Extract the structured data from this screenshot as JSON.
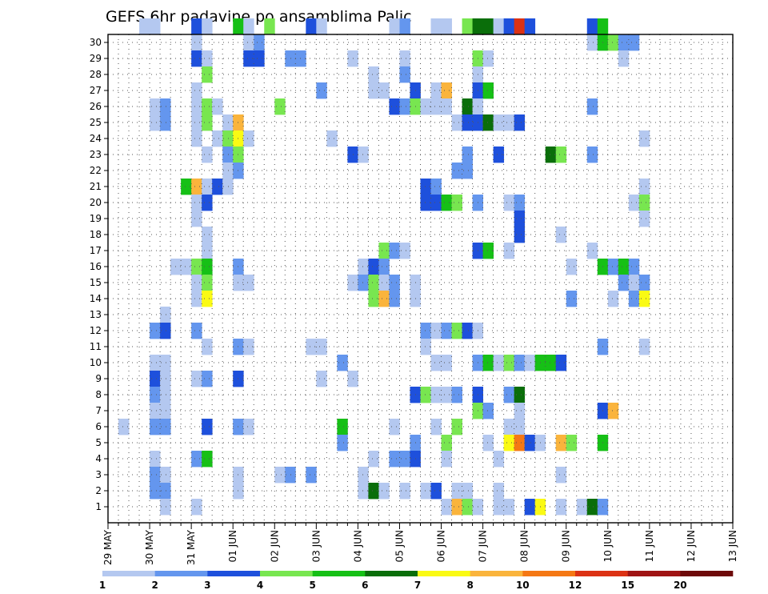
{
  "chart_data": {
    "type": "heatmap",
    "title": "GEFS 6hr padavine po ansamblima Palic",
    "y_categories": [
      "1",
      "2",
      "3",
      "4",
      "5",
      "6",
      "7",
      "8",
      "9",
      "10",
      "11",
      "12",
      "13",
      "14",
      "15",
      "16",
      "17",
      "18",
      "19",
      "20",
      "21",
      "22",
      "23",
      "24",
      "25",
      "26",
      "27",
      "28",
      "29",
      "30"
    ],
    "x_tick_labels": [
      "29 MAY",
      "30 MAY",
      "31 MAY",
      "01 JUN",
      "02 JUN",
      "03 JUN",
      "04 JUN",
      "05 JUN",
      "06 JUN",
      "07 JUN",
      "08 JUN",
      "09 JUN",
      "10 JUN",
      "11 JUN",
      "12 JUN",
      "13 JUN"
    ],
    "steps_per_day": 4,
    "grid": true,
    "legend": {
      "placement": "bottom",
      "bounds": [
        "1",
        "2",
        "3",
        "4",
        "5",
        "6",
        "7",
        "8",
        "10",
        "12",
        "15",
        "20"
      ],
      "colors": [
        "#b4c8f0",
        "#6496ee",
        "#1e50dc",
        "#78e650",
        "#16c016",
        "#0a6e0a",
        "#fafa14",
        "#fab43c",
        "#f57814",
        "#dc3214",
        "#a01414",
        "#6e0a0a"
      ]
    },
    "cells": [
      [
        30,
        3,
        0
      ],
      [
        30,
        4,
        0
      ],
      [
        30,
        8,
        2
      ],
      [
        30,
        9,
        0
      ],
      [
        30,
        12,
        4
      ],
      [
        30,
        13,
        0
      ],
      [
        30,
        15,
        3
      ],
      [
        30,
        19,
        2
      ],
      [
        30,
        20,
        0
      ],
      [
        30,
        27,
        0
      ],
      [
        30,
        28,
        1
      ],
      [
        30,
        31,
        0
      ],
      [
        30,
        32,
        0
      ],
      [
        30,
        34,
        3
      ],
      [
        30,
        35,
        5
      ],
      [
        30,
        36,
        5
      ],
      [
        30,
        37,
        0
      ],
      [
        30,
        38,
        2
      ],
      [
        30,
        39,
        9
      ],
      [
        30,
        40,
        2
      ],
      [
        30,
        46,
        2
      ],
      [
        30,
        47,
        4
      ],
      [
        29,
        8,
        0
      ],
      [
        29,
        13,
        0
      ],
      [
        29,
        14,
        1
      ],
      [
        29,
        46,
        0
      ],
      [
        29,
        47,
        4
      ],
      [
        29,
        48,
        3
      ],
      [
        29,
        49,
        1
      ],
      [
        29,
        50,
        1
      ],
      [
        28,
        8,
        2
      ],
      [
        28,
        9,
        0
      ],
      [
        28,
        13,
        2
      ],
      [
        28,
        14,
        2
      ],
      [
        28,
        17,
        1
      ],
      [
        28,
        18,
        1
      ],
      [
        28,
        23,
        0
      ],
      [
        28,
        28,
        0
      ],
      [
        28,
        35,
        3
      ],
      [
        28,
        36,
        0
      ],
      [
        28,
        49,
        0
      ],
      [
        27,
        9,
        3
      ],
      [
        27,
        25,
        0
      ],
      [
        27,
        28,
        1
      ],
      [
        27,
        35,
        0
      ],
      [
        26,
        8,
        0
      ],
      [
        26,
        20,
        1
      ],
      [
        26,
        25,
        0
      ],
      [
        26,
        26,
        0
      ],
      [
        26,
        29,
        2
      ],
      [
        26,
        31,
        0
      ],
      [
        26,
        32,
        7
      ],
      [
        26,
        35,
        2
      ],
      [
        26,
        36,
        4
      ],
      [
        25,
        4,
        0
      ],
      [
        25,
        5,
        1
      ],
      [
        25,
        8,
        0
      ],
      [
        25,
        9,
        3
      ],
      [
        25,
        10,
        0
      ],
      [
        25,
        16,
        3
      ],
      [
        25,
        27,
        2
      ],
      [
        25,
        28,
        1
      ],
      [
        25,
        29,
        3
      ],
      [
        25,
        30,
        0
      ],
      [
        25,
        31,
        0
      ],
      [
        25,
        32,
        0
      ],
      [
        25,
        34,
        5
      ],
      [
        25,
        35,
        0
      ],
      [
        25,
        46,
        1
      ],
      [
        24,
        4,
        0
      ],
      [
        24,
        5,
        1
      ],
      [
        24,
        8,
        0
      ],
      [
        24,
        9,
        3
      ],
      [
        24,
        11,
        0
      ],
      [
        24,
        12,
        7
      ],
      [
        24,
        33,
        0
      ],
      [
        24,
        34,
        2
      ],
      [
        24,
        35,
        2
      ],
      [
        24,
        36,
        5
      ],
      [
        24,
        37,
        0
      ],
      [
        24,
        38,
        0
      ],
      [
        24,
        39,
        2
      ],
      [
        23,
        8,
        0
      ],
      [
        23,
        10,
        0
      ],
      [
        23,
        11,
        3
      ],
      [
        23,
        12,
        6
      ],
      [
        23,
        13,
        0
      ],
      [
        23,
        21,
        0
      ],
      [
        23,
        51,
        0
      ],
      [
        22,
        9,
        0
      ],
      [
        22,
        11,
        1
      ],
      [
        22,
        12,
        3
      ],
      [
        22,
        23,
        2
      ],
      [
        22,
        24,
        0
      ],
      [
        22,
        34,
        1
      ],
      [
        22,
        37,
        2
      ],
      [
        22,
        42,
        5
      ],
      [
        22,
        43,
        3
      ],
      [
        22,
        46,
        1
      ],
      [
        21,
        11,
        0
      ],
      [
        21,
        12,
        1
      ],
      [
        21,
        33,
        1
      ],
      [
        21,
        34,
        1
      ],
      [
        20,
        7,
        4
      ],
      [
        20,
        8,
        7
      ],
      [
        20,
        9,
        0
      ],
      [
        20,
        10,
        2
      ],
      [
        20,
        11,
        0
      ],
      [
        20,
        30,
        2
      ],
      [
        20,
        31,
        1
      ],
      [
        20,
        51,
        0
      ],
      [
        19,
        8,
        0
      ],
      [
        19,
        9,
        2
      ],
      [
        19,
        30,
        2
      ],
      [
        19,
        31,
        2
      ],
      [
        19,
        32,
        4
      ],
      [
        19,
        33,
        3
      ],
      [
        19,
        35,
        1
      ],
      [
        19,
        38,
        0
      ],
      [
        19,
        39,
        1
      ],
      [
        19,
        50,
        0
      ],
      [
        19,
        51,
        3
      ],
      [
        18,
        8,
        0
      ],
      [
        18,
        39,
        2
      ],
      [
        18,
        51,
        0
      ],
      [
        17,
        9,
        0
      ],
      [
        17,
        39,
        2
      ],
      [
        17,
        43,
        0
      ],
      [
        16,
        9,
        0
      ],
      [
        16,
        26,
        3
      ],
      [
        16,
        27,
        1
      ],
      [
        16,
        28,
        0
      ],
      [
        16,
        35,
        2
      ],
      [
        16,
        36,
        4
      ],
      [
        16,
        38,
        0
      ],
      [
        16,
        46,
        0
      ],
      [
        15,
        6,
        0
      ],
      [
        15,
        7,
        0
      ],
      [
        15,
        8,
        3
      ],
      [
        15,
        9,
        4
      ],
      [
        15,
        12,
        1
      ],
      [
        15,
        24,
        0
      ],
      [
        15,
        25,
        2
      ],
      [
        15,
        26,
        1
      ],
      [
        15,
        44,
        0
      ],
      [
        15,
        47,
        4
      ],
      [
        15,
        48,
        1
      ],
      [
        15,
        49,
        4
      ],
      [
        15,
        50,
        1
      ],
      [
        14,
        8,
        0
      ],
      [
        14,
        9,
        3
      ],
      [
        14,
        12,
        0
      ],
      [
        14,
        13,
        0
      ],
      [
        14,
        23,
        0
      ],
      [
        14,
        24,
        1
      ],
      [
        14,
        25,
        3
      ],
      [
        14,
        26,
        0
      ],
      [
        14,
        27,
        1
      ],
      [
        14,
        29,
        0
      ],
      [
        14,
        49,
        1
      ],
      [
        14,
        50,
        0
      ],
      [
        14,
        51,
        1
      ],
      [
        13,
        8,
        0
      ],
      [
        13,
        9,
        6
      ],
      [
        13,
        25,
        3
      ],
      [
        13,
        26,
        7
      ],
      [
        13,
        27,
        1
      ],
      [
        13,
        29,
        0
      ],
      [
        13,
        44,
        1
      ],
      [
        13,
        48,
        0
      ],
      [
        13,
        50,
        1
      ],
      [
        13,
        51,
        6
      ],
      [
        12,
        5,
        0
      ],
      [
        11,
        4,
        1
      ],
      [
        11,
        5,
        2
      ],
      [
        11,
        8,
        1
      ],
      [
        11,
        30,
        1
      ],
      [
        11,
        31,
        0
      ],
      [
        11,
        32,
        1
      ],
      [
        11,
        33,
        3
      ],
      [
        11,
        34,
        2
      ],
      [
        11,
        35,
        0
      ],
      [
        10,
        9,
        0
      ],
      [
        10,
        12,
        1
      ],
      [
        10,
        13,
        0
      ],
      [
        10,
        19,
        0
      ],
      [
        10,
        20,
        0
      ],
      [
        10,
        30,
        0
      ],
      [
        10,
        47,
        1
      ],
      [
        10,
        51,
        0
      ],
      [
        9,
        4,
        0
      ],
      [
        9,
        5,
        0
      ],
      [
        9,
        22,
        1
      ],
      [
        9,
        31,
        0
      ],
      [
        9,
        32,
        0
      ],
      [
        9,
        35,
        1
      ],
      [
        9,
        36,
        4
      ],
      [
        9,
        37,
        0
      ],
      [
        9,
        38,
        3
      ],
      [
        9,
        39,
        1
      ],
      [
        9,
        40,
        0
      ],
      [
        9,
        41,
        4
      ],
      [
        9,
        42,
        4
      ],
      [
        9,
        43,
        2
      ],
      [
        8,
        4,
        2
      ],
      [
        8,
        5,
        0
      ],
      [
        8,
        8,
        0
      ],
      [
        8,
        9,
        1
      ],
      [
        8,
        12,
        2
      ],
      [
        8,
        20,
        0
      ],
      [
        8,
        23,
        0
      ],
      [
        7,
        4,
        1
      ],
      [
        7,
        5,
        0
      ],
      [
        7,
        29,
        2
      ],
      [
        7,
        30,
        3
      ],
      [
        7,
        31,
        0
      ],
      [
        7,
        32,
        0
      ],
      [
        7,
        33,
        1
      ],
      [
        7,
        35,
        2
      ],
      [
        7,
        38,
        1
      ],
      [
        7,
        39,
        5
      ],
      [
        6,
        4,
        0
      ],
      [
        6,
        5,
        0
      ],
      [
        6,
        35,
        3
      ],
      [
        6,
        36,
        1
      ],
      [
        6,
        39,
        0
      ],
      [
        6,
        47,
        2
      ],
      [
        6,
        48,
        7
      ],
      [
        5,
        1,
        0
      ],
      [
        5,
        4,
        1
      ],
      [
        5,
        5,
        1
      ],
      [
        5,
        9,
        2
      ],
      [
        5,
        12,
        1
      ],
      [
        5,
        13,
        0
      ],
      [
        5,
        22,
        4
      ],
      [
        5,
        27,
        0
      ],
      [
        5,
        31,
        0
      ],
      [
        5,
        33,
        3
      ],
      [
        5,
        38,
        0
      ],
      [
        5,
        39,
        0
      ],
      [
        4,
        22,
        1
      ],
      [
        4,
        29,
        1
      ],
      [
        4,
        32,
        3
      ],
      [
        4,
        36,
        0
      ],
      [
        4,
        38,
        6
      ],
      [
        4,
        39,
        8
      ],
      [
        4,
        40,
        2
      ],
      [
        4,
        41,
        0
      ],
      [
        4,
        43,
        7
      ],
      [
        4,
        44,
        3
      ],
      [
        4,
        47,
        4
      ],
      [
        3,
        4,
        0
      ],
      [
        3,
        8,
        1
      ],
      [
        3,
        9,
        4
      ],
      [
        3,
        25,
        0
      ],
      [
        3,
        27,
        1
      ],
      [
        3,
        28,
        1
      ],
      [
        3,
        29,
        2
      ],
      [
        3,
        32,
        0
      ],
      [
        3,
        37,
        0
      ],
      [
        2,
        4,
        1
      ],
      [
        2,
        5,
        0
      ],
      [
        2,
        12,
        0
      ],
      [
        2,
        16,
        0
      ],
      [
        2,
        17,
        1
      ],
      [
        2,
        19,
        1
      ],
      [
        2,
        24,
        0
      ],
      [
        2,
        43,
        0
      ],
      [
        1,
        4,
        1
      ],
      [
        1,
        5,
        1
      ],
      [
        1,
        12,
        0
      ],
      [
        1,
        24,
        0
      ],
      [
        1,
        25,
        5
      ],
      [
        1,
        26,
        0
      ],
      [
        1,
        28,
        0
      ],
      [
        1,
        30,
        0
      ],
      [
        1,
        31,
        2
      ],
      [
        1,
        33,
        0
      ],
      [
        1,
        34,
        0
      ],
      [
        1,
        37,
        0
      ],
      [
        0,
        5,
        0
      ],
      [
        0,
        8,
        0
      ],
      [
        0,
        32,
        0
      ],
      [
        0,
        33,
        7
      ],
      [
        0,
        34,
        3
      ],
      [
        0,
        35,
        0
      ],
      [
        0,
        37,
        0
      ],
      [
        0,
        38,
        0
      ],
      [
        0,
        40,
        2
      ],
      [
        0,
        41,
        6
      ],
      [
        0,
        43,
        0
      ],
      [
        0,
        45,
        0
      ],
      [
        0,
        46,
        5
      ],
      [
        0,
        47,
        1
      ]
    ]
  }
}
